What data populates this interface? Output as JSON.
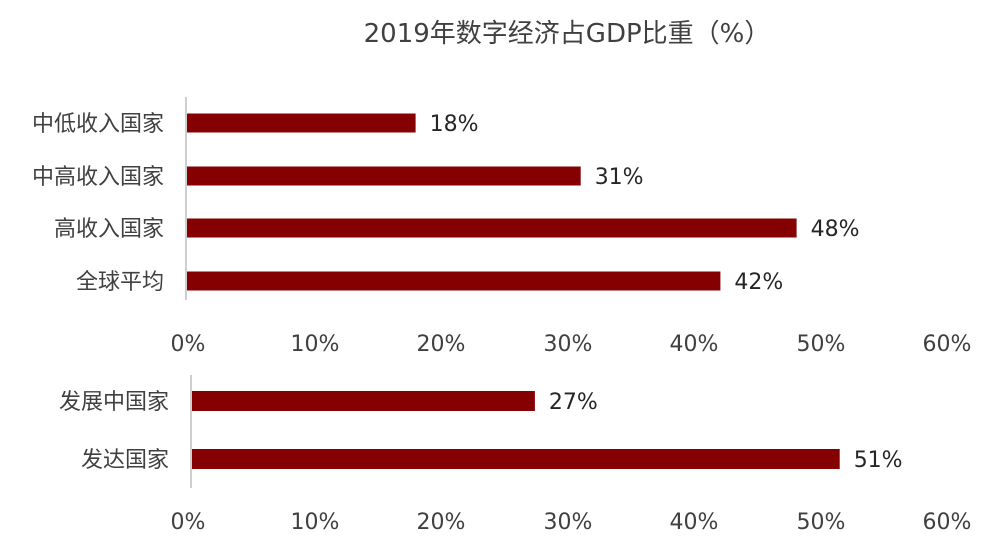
{
  "title": "2019年数字经济占GDP比重（%）",
  "colors": {
    "bar": "#850000",
    "text": "#404040",
    "axis": "#bfbfbf"
  },
  "chart_data": [
    {
      "type": "bar",
      "orientation": "horizontal",
      "categories": [
        "中低收入国家",
        "中高收入国家",
        "高收入国家",
        "全球平均"
      ],
      "values": [
        18,
        31,
        48,
        42
      ],
      "value_labels": [
        "18%",
        "31%",
        "48%",
        "42%"
      ],
      "xlim": [
        0,
        60
      ],
      "xticks": [
        "0%",
        "10%",
        "20%",
        "30%",
        "40%",
        "50%",
        "60%"
      ],
      "grid": false
    },
    {
      "type": "bar",
      "orientation": "horizontal",
      "categories": [
        "发展中国家",
        "发达国家"
      ],
      "values": [
        27,
        51
      ],
      "value_labels": [
        "27%",
        "51%"
      ],
      "xlim": [
        0,
        60
      ],
      "xticks": [
        "0%",
        "10%",
        "20%",
        "30%",
        "40%",
        "50%",
        "60%"
      ],
      "grid": false
    }
  ]
}
